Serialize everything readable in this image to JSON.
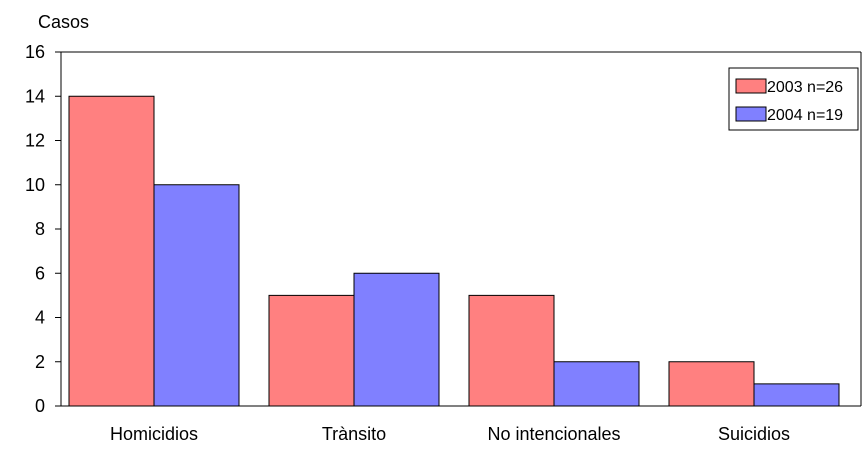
{
  "chart_data": {
    "type": "bar",
    "ylabel": "Casos",
    "xlabel": "",
    "categories": [
      "Homicidios",
      "Trànsito",
      "No intencionales",
      "Suicidios"
    ],
    "series": [
      {
        "name": "2003 n=26",
        "color": "#ff8080",
        "values": [
          14,
          5,
          5,
          2
        ]
      },
      {
        "name": "2004 n=19",
        "color": "#8080ff",
        "values": [
          10,
          6,
          2,
          1
        ]
      }
    ],
    "ylim": [
      0,
      16
    ],
    "yticks": [
      0,
      2,
      4,
      6,
      8,
      10,
      12,
      14,
      16
    ],
    "grid": false,
    "legend": "top-right"
  }
}
